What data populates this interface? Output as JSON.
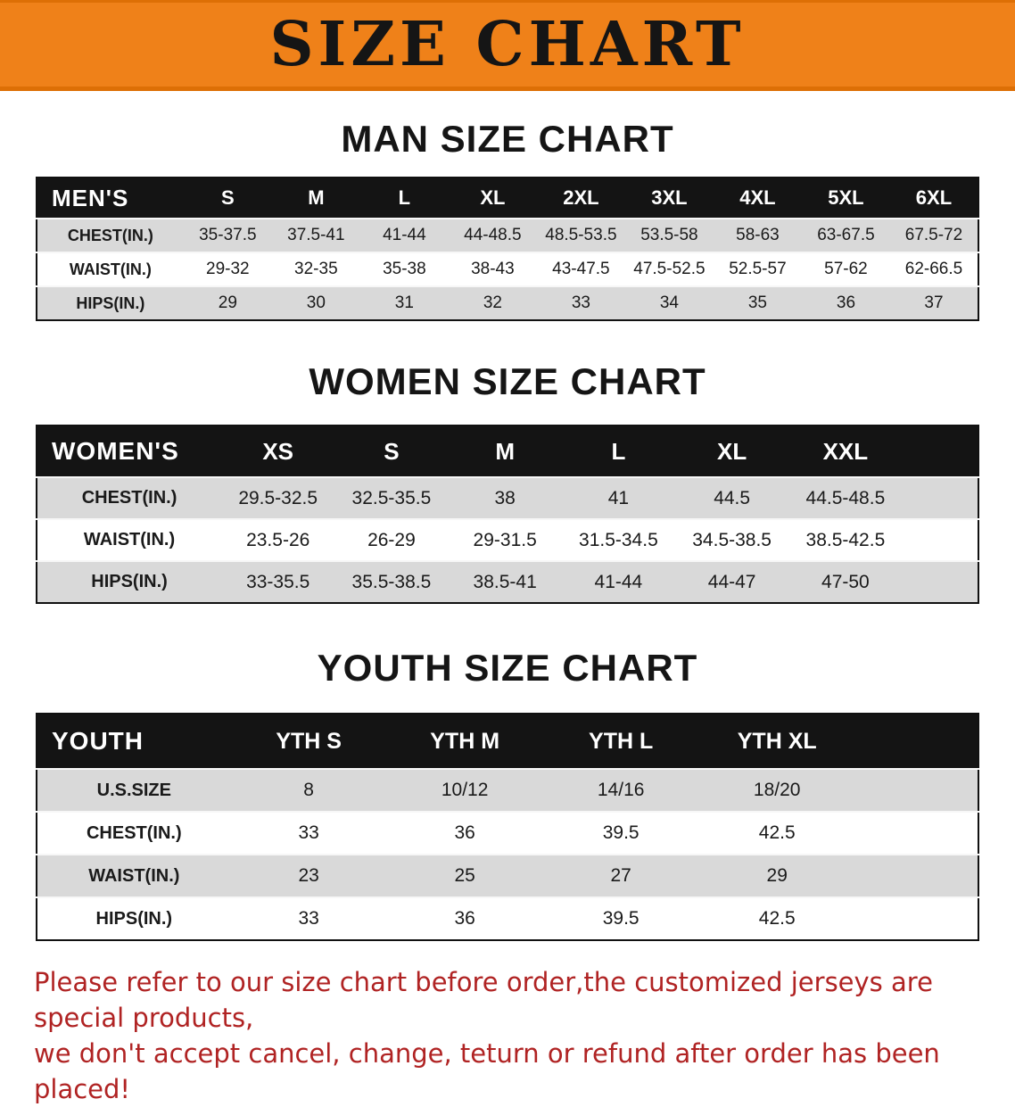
{
  "banner": {
    "title": "SIZE CHART"
  },
  "men": {
    "heading": "MAN SIZE CHART",
    "table": {
      "corner": "MEN'S",
      "sizes": [
        "S",
        "M",
        "L",
        "XL",
        "2XL",
        "3XL",
        "4XL",
        "5XL",
        "6XL"
      ],
      "rows": [
        {
          "label": "CHEST(IN.)",
          "values": [
            "35-37.5",
            "37.5-41",
            "41-44",
            "44-48.5",
            "48.5-53.5",
            "53.5-58",
            "58-63",
            "63-67.5",
            "67.5-72"
          ]
        },
        {
          "label": "WAIST(IN.)",
          "values": [
            "29-32",
            "32-35",
            "35-38",
            "38-43",
            "43-47.5",
            "47.5-52.5",
            "52.5-57",
            "57-62",
            "62-66.5"
          ]
        },
        {
          "label": "HIPS(IN.)",
          "values": [
            "29",
            "30",
            "31",
            "32",
            "33",
            "34",
            "35",
            "36",
            "37"
          ]
        }
      ]
    }
  },
  "women": {
    "heading": "WOMEN SIZE CHART",
    "table": {
      "corner": "WOMEN'S",
      "sizes": [
        "XS",
        "S",
        "M",
        "L",
        "XL",
        "XXL"
      ],
      "rows": [
        {
          "label": "CHEST(IN.)",
          "values": [
            "29.5-32.5",
            "32.5-35.5",
            "38",
            "41",
            "44.5",
            "44.5-48.5"
          ]
        },
        {
          "label": "WAIST(IN.)",
          "values": [
            "23.5-26",
            "26-29",
            "29-31.5",
            "31.5-34.5",
            "34.5-38.5",
            "38.5-42.5"
          ]
        },
        {
          "label": "HIPS(IN.)",
          "values": [
            "33-35.5",
            "35.5-38.5",
            "38.5-41",
            "41-44",
            "44-47",
            "47-50"
          ]
        }
      ]
    }
  },
  "youth": {
    "heading": "YOUTH SIZE CHART",
    "table": {
      "corner": "YOUTH",
      "sizes": [
        "YTH S",
        "YTH M",
        "YTH L",
        "YTH XL"
      ],
      "rows": [
        {
          "label": "U.S.SIZE",
          "values": [
            "8",
            "10/12",
            "14/16",
            "18/20"
          ]
        },
        {
          "label": "CHEST(IN.)",
          "values": [
            "33",
            "36",
            "39.5",
            "42.5"
          ]
        },
        {
          "label": "WAIST(IN.)",
          "values": [
            "23",
            "25",
            "27",
            "29"
          ]
        },
        {
          "label": "HIPS(IN.)",
          "values": [
            "33",
            "36",
            "39.5",
            "42.5"
          ]
        }
      ]
    }
  },
  "footer": {
    "line1": "Please refer to our size chart before order,the customized jerseys are special products,",
    "line2": "we don't accept cancel, change, teturn or refund after order has been placed!"
  },
  "colors": {
    "banner_orange": "#EF8119",
    "banner_border_orange": "#DD6F05",
    "header_black": "#141414",
    "row_gray": "#D9D9D9",
    "note_red": "#B02323"
  }
}
